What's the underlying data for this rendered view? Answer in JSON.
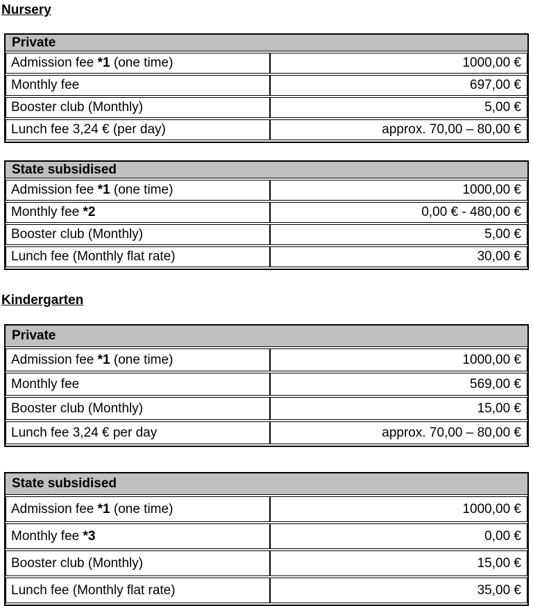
{
  "document": {
    "colors": {
      "table_header_bg": "#c0c0c0",
      "table_border": "#000000",
      "page_bg": "#ffffff",
      "text": "#000000"
    },
    "sections": [
      {
        "heading": "Nursery",
        "tables": [
          {
            "title": "Private",
            "rows": [
              {
                "label_pre": "Admission fee ",
                "label_bold": "*1",
                "label_post": " (one time)",
                "value": "1000,00 €"
              },
              {
                "label_pre": "Monthly fee",
                "label_bold": "",
                "label_post": "",
                "value": "697,00 €"
              },
              {
                "label_pre": "Booster club (Monthly)",
                "label_bold": "",
                "label_post": "",
                "value": "5,00 €"
              },
              {
                "label_pre": "Lunch fee 3,24 € (per day)",
                "label_bold": "",
                "label_post": "",
                "value": "approx. 70,00 – 80,00 €"
              }
            ]
          },
          {
            "title": "State subsidised",
            "rows": [
              {
                "label_pre": "Admission fee ",
                "label_bold": "*1",
                "label_post": " (one time)",
                "value": "1000,00 €"
              },
              {
                "label_pre": "Monthly fee ",
                "label_bold": "*2",
                "label_post": "",
                "value": "0,00 € - 480,00 €"
              },
              {
                "label_pre": "Booster club (Monthly)",
                "label_bold": "",
                "label_post": "",
                "value": "5,00 €"
              },
              {
                "label_pre": "Lunch fee (Monthly flat rate)",
                "label_bold": "",
                "label_post": "",
                "value": "30,00 €"
              }
            ]
          }
        ]
      },
      {
        "heading": "Kindergarten",
        "tables": [
          {
            "title": "Private",
            "rows": [
              {
                "label_pre": "Admission fee ",
                "label_bold": "*1",
                "label_post": " (one time)",
                "value": "1000,00 €"
              },
              {
                "label_pre": "Monthly fee",
                "label_bold": "",
                "label_post": "",
                "value": "569,00 €"
              },
              {
                "label_pre": "Booster club (Monthly)",
                "label_bold": "",
                "label_post": "",
                "value": "15,00 €"
              },
              {
                "label_pre": "Lunch fee 3,24 € per day",
                "label_bold": "",
                "label_post": "",
                "value": "approx. 70,00 – 80,00 €"
              }
            ]
          },
          {
            "title": "State subsidised",
            "rows": [
              {
                "label_pre": "Admission fee ",
                "label_bold": "*1",
                "label_post": " (one time)",
                "value": "1000,00 €"
              },
              {
                "label_pre": "Monthly fee ",
                "label_bold": "*3",
                "label_post": "",
                "value": "0,00 €"
              },
              {
                "label_pre": "Booster club (Monthly)",
                "label_bold": "",
                "label_post": "",
                "value": "15,00 €"
              },
              {
                "label_pre": "Lunch fee (Monthly flat rate)",
                "label_bold": "",
                "label_post": "",
                "value": "35,00 €"
              }
            ]
          }
        ]
      }
    ]
  }
}
